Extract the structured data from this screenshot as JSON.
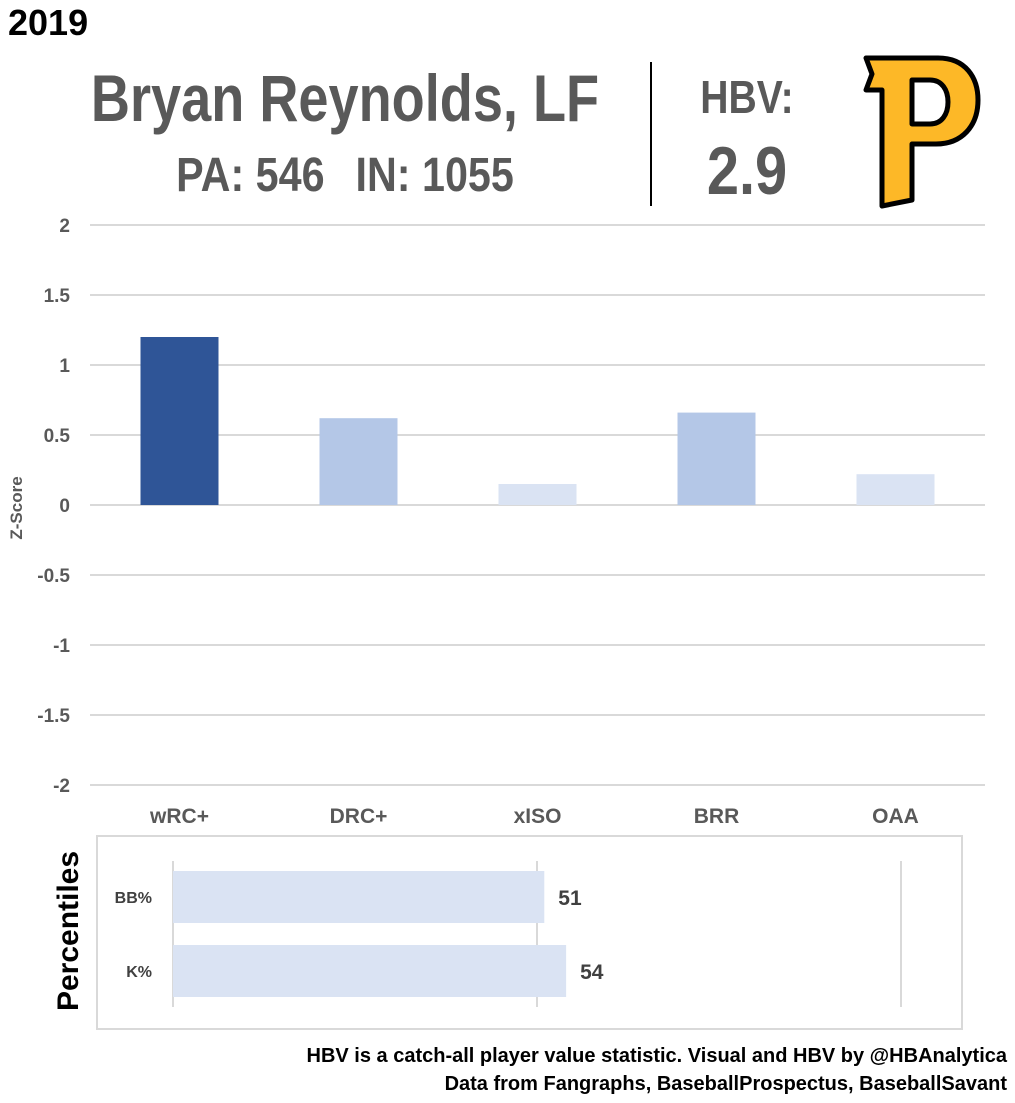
{
  "header": {
    "year": "2019",
    "player_name": "Bryan Reynolds, LF",
    "pa": "PA: 546",
    "innings": "IN: 1055",
    "hbv_label": "HBV:",
    "hbv_value": "2.9"
  },
  "logo": {
    "letter": "P",
    "icon": "pittsburgh-pirates-logo-icon",
    "fill": "#FDB827",
    "stroke": "#000000"
  },
  "chart_data": [
    {
      "type": "bar",
      "title": "",
      "xlabel": "",
      "ylabel": "Z-Score",
      "categories": [
        "wRC+",
        "DRC+",
        "xISO",
        "BRR",
        "OAA"
      ],
      "values": [
        1.2,
        0.62,
        0.15,
        0.66,
        0.22
      ],
      "colors": [
        "#2F5597",
        "#B4C7E7",
        "#DAE3F3",
        "#B4C7E7",
        "#DAE3F3"
      ],
      "ylim": [
        -2,
        2
      ],
      "yticks": [
        2,
        1.5,
        1,
        0.5,
        0,
        -0.5,
        -1,
        -1.5,
        -2
      ],
      "ytick_labels": [
        "2",
        "1.5",
        "1",
        "0.5",
        "0",
        "-0.5",
        "-1",
        "-1.5",
        "-2"
      ],
      "grid": true,
      "legend": "none"
    },
    {
      "type": "bar",
      "orientation": "horizontal",
      "title": "",
      "ylabel": "Percentiles",
      "categories": [
        "BB%",
        "K%"
      ],
      "values": [
        51,
        54
      ],
      "data_labels": [
        "51",
        "54"
      ],
      "color": "#DAE3F3",
      "xlim": [
        0,
        100
      ],
      "grid": true,
      "legend": "none"
    }
  ],
  "footer": {
    "line1": "HBV is a catch-all player value statistic. Visual and HBV by @HBAnalytica",
    "line2": "Data from Fangraphs, BaseballProspectus, BaseballSavant"
  }
}
